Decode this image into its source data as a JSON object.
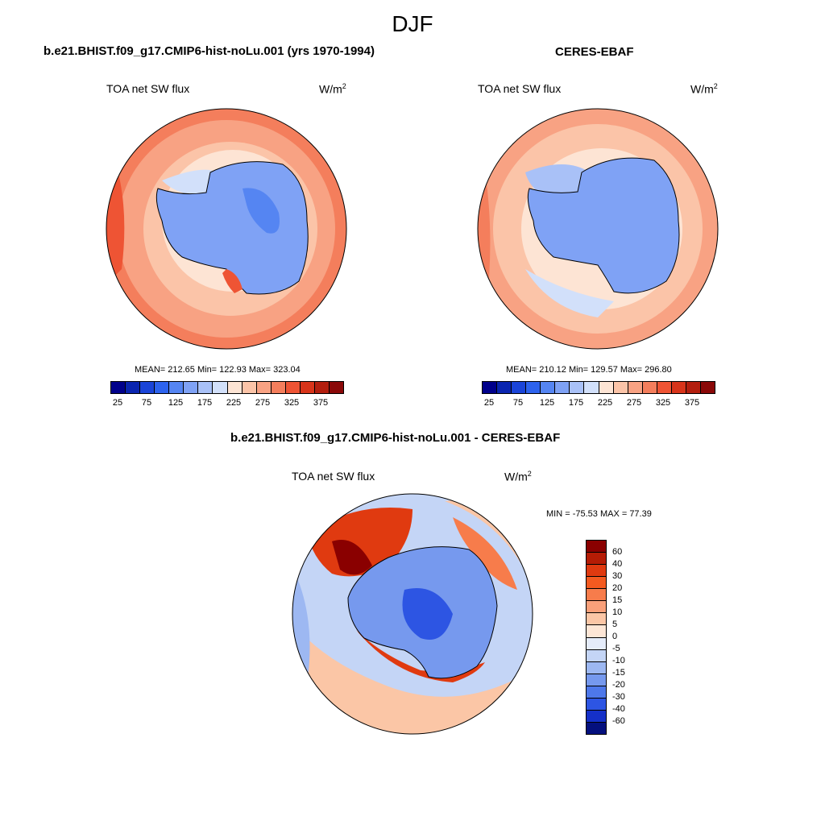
{
  "title": "DJF",
  "panels": {
    "model": {
      "title": "b.e21.BHIST.f09_g17.CMIP6-hist-noLu.001 (yrs 1970-1994)",
      "variable": "TOA net SW flux",
      "units": "W/m",
      "units_sup": "2",
      "stats": "MEAN= 212.65  Min= 122.93  Max= 323.04"
    },
    "obs": {
      "title": "CERES-EBAF",
      "variable": "TOA net SW flux",
      "units": "W/m",
      "units_sup": "2",
      "stats": "MEAN= 210.12  Min= 129.57  Max= 296.80"
    },
    "diff": {
      "title": "b.e21.BHIST.f09_g17.CMIP6-hist-noLu.001 - CERES-EBAF",
      "variable": "TOA net SW flux",
      "units": "W/m",
      "units_sup": "2",
      "stats": "MIN = -75.53 MAX =  77.39"
    }
  },
  "colorbar_abs": {
    "colors": [
      "#00008b",
      "#0a25b0",
      "#1a44d8",
      "#2d63ee",
      "#5585f2",
      "#7fa2f5",
      "#a9c1f7",
      "#d2e0fa",
      "#fde4d4",
      "#fbc4a8",
      "#f8a283",
      "#f47e5c",
      "#ee5434",
      "#d8341a",
      "#b31e0e",
      "#8a0808"
    ],
    "ticks": [
      "25",
      "75",
      "125",
      "175",
      "225",
      "275",
      "325",
      "375"
    ]
  },
  "colorbar_diff": {
    "colors": [
      "#8a0000",
      "#b51c05",
      "#e03a10",
      "#f45a20",
      "#f77c4b",
      "#f9a07a",
      "#fbc6a6",
      "#fde6d6",
      "#e5ecfa",
      "#c4d5f6",
      "#9db8f2",
      "#7699ee",
      "#4e78ea",
      "#2d55e3",
      "#1530c8",
      "#04107e"
    ],
    "ticks": [
      "60",
      "40",
      "30",
      "20",
      "15",
      "10",
      "5",
      "0",
      "-5",
      "-10",
      "-15",
      "-20",
      "-30",
      "-40",
      "-60"
    ]
  }
}
